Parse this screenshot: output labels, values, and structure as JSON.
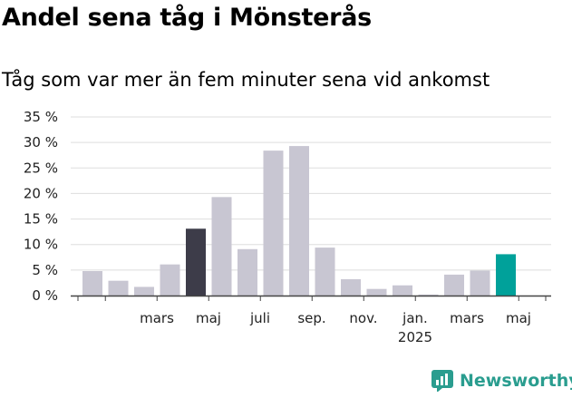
{
  "title": "Andel sena tåg i Mönsterås",
  "subtitle": "Tåg som var mer än fem minuter sena vid ankomst",
  "brand": {
    "name": "Newsworthy",
    "color": "#2a9d8f",
    "icon": "newsworthy-logo-icon"
  },
  "chart_data": {
    "type": "bar",
    "ylim": [
      0,
      35
    ],
    "yticks": [
      0,
      5,
      10,
      15,
      20,
      25,
      30,
      35
    ],
    "ytick_suffix": " %",
    "grid": true,
    "values": [
      4.8,
      2.9,
      1.7,
      6.1,
      13.1,
      19.3,
      9.1,
      28.4,
      29.3,
      9.4,
      3.2,
      1.3,
      2.0,
      0.2,
      4.1,
      4.9,
      8.1
    ],
    "colors": {
      "default": "#c8c6d2",
      "highlight_dark": "#3d3c49",
      "highlight_accent": "#00a19a"
    },
    "highlights": [
      {
        "index": 4,
        "color": "highlight_dark"
      },
      {
        "index": 16,
        "color": "highlight_accent"
      }
    ],
    "xtick_labels": [
      {
        "index": 2,
        "label": "mars"
      },
      {
        "index": 4,
        "label": "maj"
      },
      {
        "index": 6,
        "label": "juli"
      },
      {
        "index": 8,
        "label": "sep."
      },
      {
        "index": 10,
        "label": "nov."
      },
      {
        "index": 12,
        "label": "jan.",
        "sublabel": "2025"
      },
      {
        "index": 14,
        "label": "mars"
      },
      {
        "index": 16,
        "label": "maj"
      }
    ]
  }
}
